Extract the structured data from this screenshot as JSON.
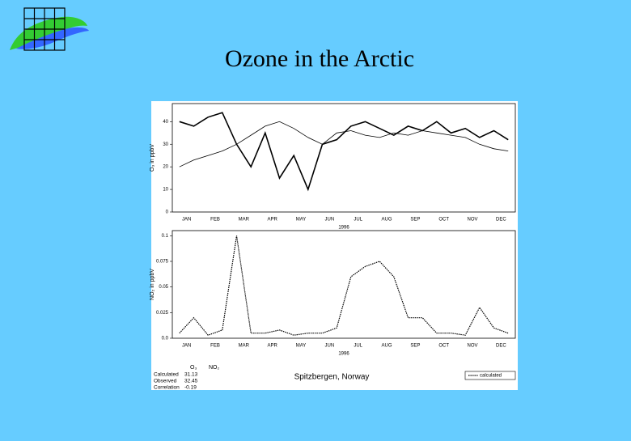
{
  "title": "Ozone in the Arctic",
  "chart_data": [
    {
      "type": "line",
      "ylabel": "O₃ in ppbV",
      "xlabel": "1996",
      "categories": [
        "JAN",
        null,
        "FEB",
        null,
        "MAR",
        null,
        "APR",
        null,
        "MAY",
        null,
        "JUN",
        null,
        "JUL",
        null,
        "AUG",
        null,
        "SEP",
        null,
        "OCT",
        null,
        "NOV",
        null,
        "DEC",
        null
      ],
      "series": [
        {
          "color": "#000000",
          "line_style": "solid",
          "values": [
            40,
            38,
            42,
            44,
            30,
            20,
            35,
            15,
            25,
            10,
            30,
            32,
            38,
            40,
            37,
            34,
            38,
            36,
            40,
            35,
            37,
            33,
            36,
            32
          ]
        },
        {
          "color": "#000000",
          "line_style": "thin",
          "values": [
            20,
            23,
            25,
            27,
            30,
            34,
            38,
            40,
            37,
            33,
            30,
            35,
            36,
            34,
            33,
            35,
            34,
            36,
            35,
            34,
            33,
            30,
            28,
            27
          ]
        }
      ],
      "ylim": [
        0,
        48
      ],
      "yticks": [
        0,
        10,
        20,
        30,
        40
      ]
    },
    {
      "type": "line",
      "ylabel": "NO₂ in ppbV",
      "xlabel": "1996",
      "categories": [
        "JAN",
        null,
        "FEB",
        null,
        "MAR",
        null,
        "APR",
        null,
        "MAY",
        null,
        "JUN",
        null,
        "JUL",
        null,
        "AUG",
        null,
        "SEP",
        null,
        "OCT",
        null,
        "NOV",
        null,
        "DEC",
        null
      ],
      "series": [
        {
          "name": "calculated",
          "color": "#000000",
          "line_style": "dotted",
          "values": [
            0.005,
            0.02,
            0.003,
            0.008,
            0.1,
            0.005,
            0.005,
            0.008,
            0.003,
            0.005,
            0.005,
            0.01,
            0.06,
            0.07,
            0.075,
            0.06,
            0.02,
            0.02,
            0.005,
            0.005,
            0.003,
            0.03,
            0.01,
            0.005
          ]
        }
      ],
      "ylim": [
        0,
        0.105
      ],
      "yticks": [
        {
          "value": 0,
          "label": "0.0"
        },
        0.025,
        0.05,
        0.075,
        0.1
      ]
    }
  ],
  "stats": {
    "headers": [
      "O₃",
      "NO₂"
    ],
    "rows": [
      [
        "Calculated",
        "31.13"
      ],
      [
        "Observed",
        "32.45"
      ],
      [
        "Correlation",
        "-0.19"
      ]
    ]
  },
  "caption": "Spitzbergen, Norway"
}
